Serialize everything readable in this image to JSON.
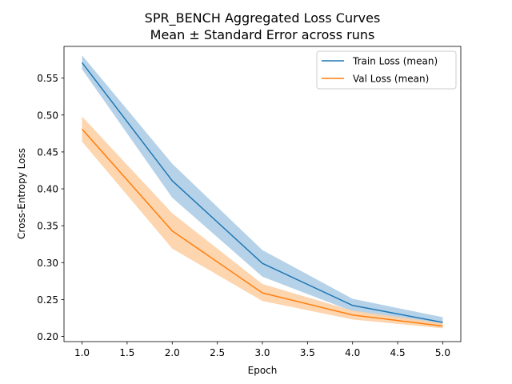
{
  "chart_data": {
    "type": "line",
    "title": "SPR_BENCH Aggregated Loss Curves",
    "subtitle": "Mean ± Standard Error across runs",
    "xlabel": "Epoch",
    "ylabel": "Cross-Entropy Loss",
    "xlim": [
      0.8,
      5.2
    ],
    "ylim": [
      0.193,
      0.593
    ],
    "x": [
      1.0,
      2.0,
      3.0,
      4.0,
      5.0
    ],
    "xticks": [
      "1.0",
      "1.5",
      "2.0",
      "2.5",
      "3.0",
      "3.5",
      "4.0",
      "4.5",
      "5.0"
    ],
    "yticks": [
      "0.20",
      "0.25",
      "0.30",
      "0.35",
      "0.40",
      "0.45",
      "0.50",
      "0.55"
    ],
    "grid": false,
    "legend_position": "top-right",
    "series": [
      {
        "name": "Train Loss (mean)",
        "color": "#1f77b4",
        "band_color": "#aecde6",
        "values": [
          0.571,
          0.411,
          0.299,
          0.242,
          0.219
        ],
        "upper": [
          0.581,
          0.434,
          0.317,
          0.251,
          0.226
        ],
        "lower": [
          0.562,
          0.388,
          0.281,
          0.234,
          0.213
        ]
      },
      {
        "name": "Val Loss (mean)",
        "color": "#ff7f0e",
        "band_color": "#fdd0a6",
        "values": [
          0.481,
          0.343,
          0.259,
          0.229,
          0.214
        ],
        "upper": [
          0.498,
          0.367,
          0.271,
          0.235,
          0.218
        ],
        "lower": [
          0.464,
          0.319,
          0.248,
          0.223,
          0.211
        ]
      }
    ]
  }
}
